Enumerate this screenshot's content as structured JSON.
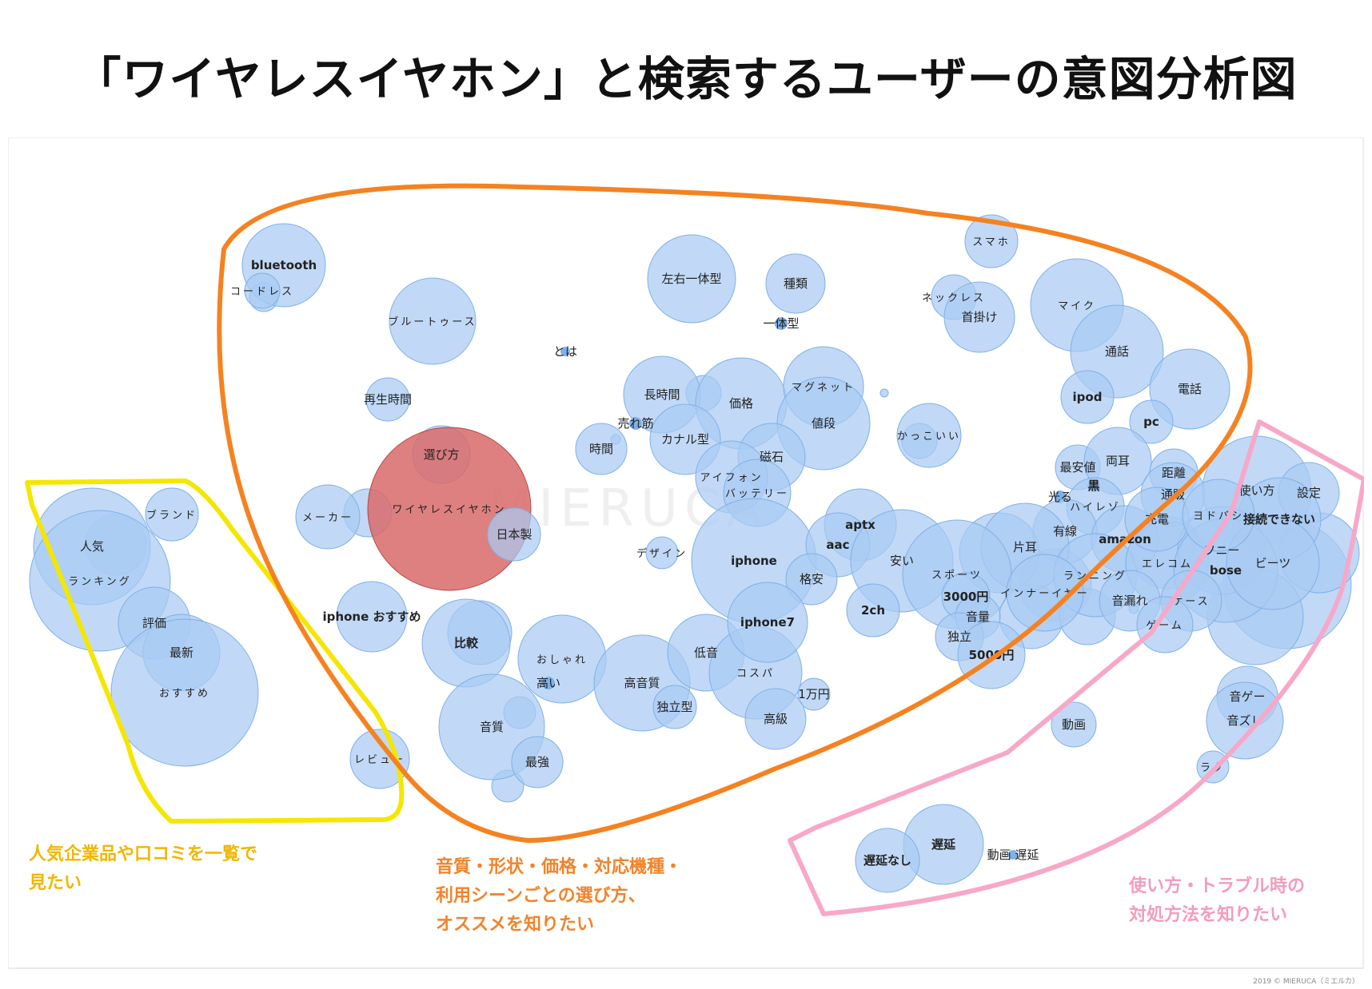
{
  "title": "「ワイヤレスイヤホン」と検索するユーザーの意図分析図",
  "watermark": "MIERUCA",
  "copyright": "2019 © MIERUCA（ミエルカ）",
  "colors": {
    "bubble": "#a9cbf2",
    "focus": "#d96a6a",
    "yellow": "#f5e600",
    "orange": "#f58220",
    "pink": "#f7a8c8"
  },
  "captions": {
    "yellow": [
      "人気企業品や口コミを一覧で",
      "見たい"
    ],
    "orange": [
      "音質・形状・価格・対応機種・",
      "利用シーンごとの選び方、",
      "オススメを知りたい"
    ],
    "pink": [
      "使い方・トラブル時の",
      "対処方法を知りたい"
    ]
  },
  "keywords": [
    "bluetooth",
    "コードレス",
    "ブルートゥース",
    "左右一体型",
    "種類",
    "一体型",
    "とは",
    "スマホ",
    "ネックレス",
    "首掛け",
    "マイク",
    "通話",
    "電話",
    "ipod",
    "pc",
    "再生時間",
    "長時間",
    "価格",
    "マグネット",
    "値段",
    "売れ筋",
    "カナル型",
    "時間",
    "かっこいい",
    "選び方",
    "磁石",
    "アイフォン",
    "バッテリー",
    "最安値",
    "両耳",
    "黒",
    "光る",
    "ハイレゾ",
    "距離",
    "通販",
    "使い方",
    "設定",
    "接続できない",
    "ワイヤレスイヤホン",
    "メーカー",
    "日本製",
    "デザイン",
    "iphone",
    "aptx",
    "aac",
    "格安",
    "安い",
    "有線",
    "片耳",
    "amazon",
    "スポーツ",
    "ランニング",
    "エレコム",
    "ソニー",
    "bose",
    "ビーツ",
    "充電",
    "ヨドバシ",
    "iphone おすすめ",
    "比較",
    "おしゃれ",
    "高い",
    "高音質",
    "低音",
    "コスパ",
    "独立型",
    "iphone7",
    "2ch",
    "3000円",
    "音量",
    "独立",
    "5000円",
    "インナーイヤー",
    "音漏れ",
    "ケース",
    "ゲーム",
    "1万円",
    "高級",
    "音質",
    "最強",
    "動画",
    "音ゲー",
    "音ズレ",
    "ラグ",
    "遅延",
    "遅延なし",
    "動画 遅延",
    "ブランド",
    "人気",
    "ランキング",
    "評価",
    "最新",
    "おすすめ",
    "レビュー"
  ]
}
